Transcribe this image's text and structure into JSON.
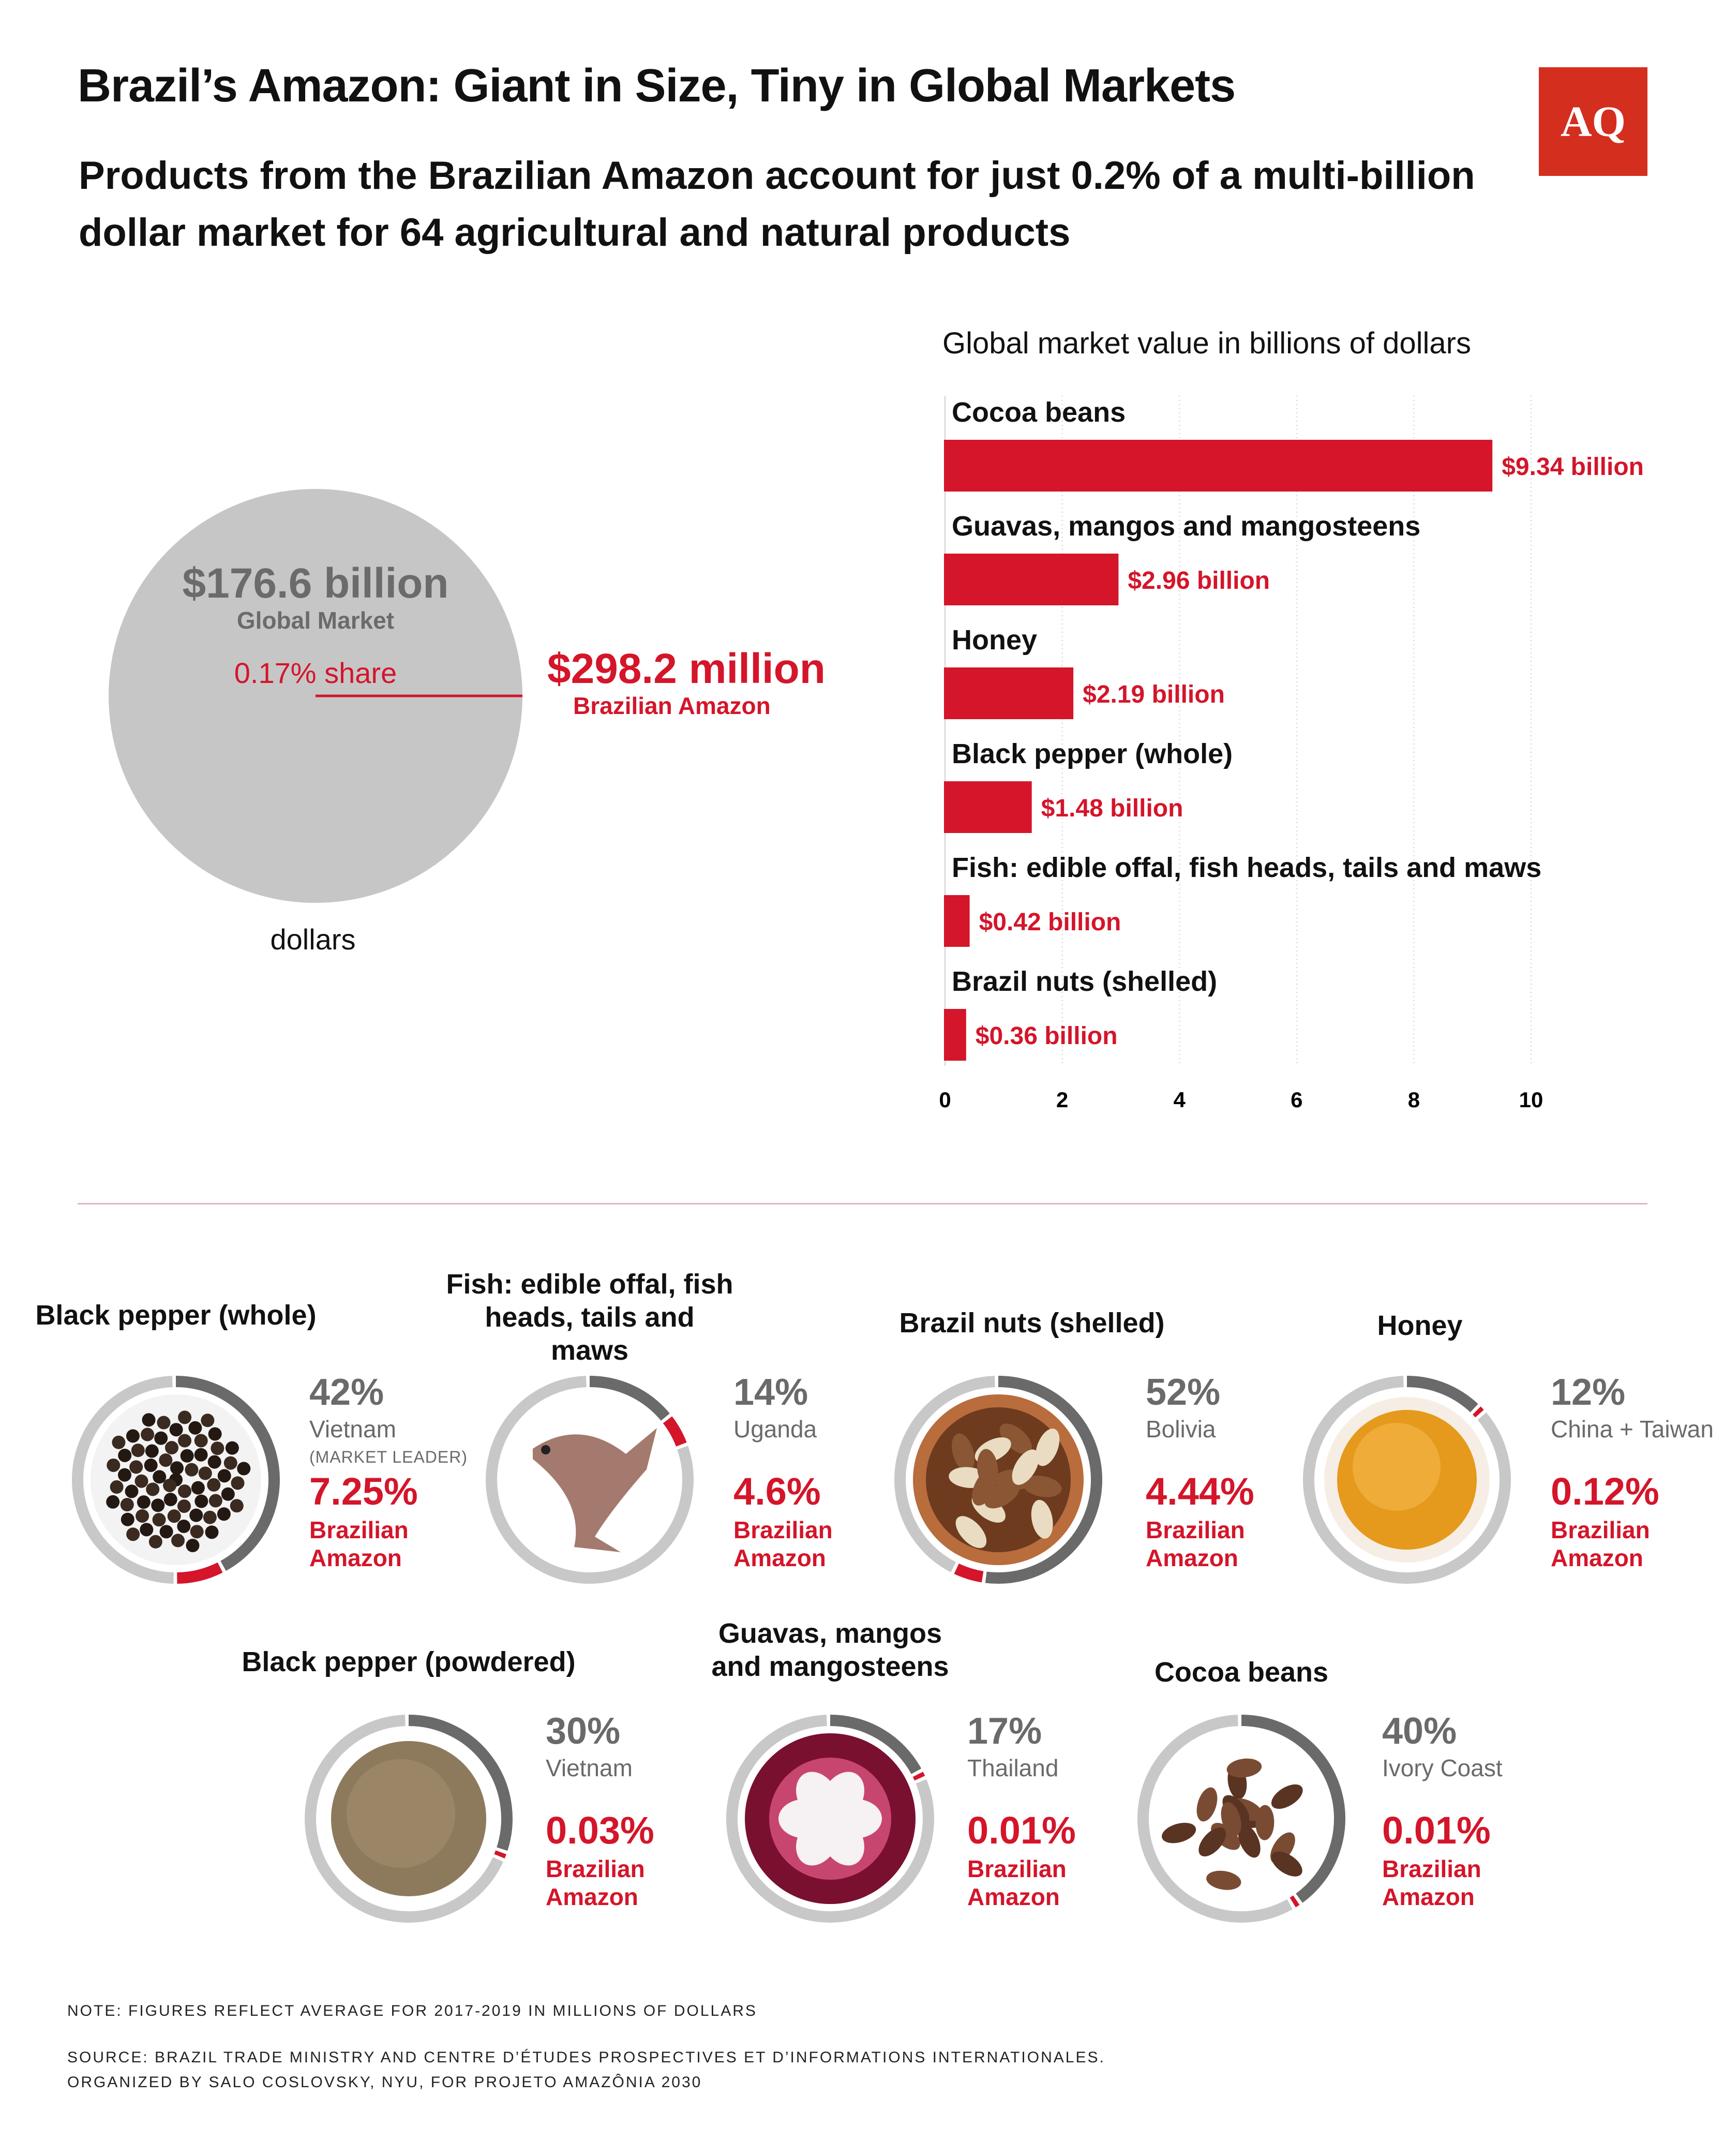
{
  "header": {
    "title": "Brazil’s Amazon: Giant in Size, Tiny in Global Markets",
    "subtitle": "Products from the Brazilian Amazon account for just 0.2% of a multi-billion dollar market for 64 agricultural and natural products",
    "logo": "AQ"
  },
  "pie": {
    "global_value": "$176.6 billion",
    "global_label": "Global Market",
    "share_label": "0.17% share",
    "amazon_value": "$298.2 million",
    "amazon_label": "Brazilian Amazon",
    "unit_label": "dollars",
    "color_global": "#c6c6c6",
    "color_accent": "#d4152a"
  },
  "chart_data": {
    "type": "bar",
    "orientation": "horizontal",
    "title": "Global market value in billions of dollars",
    "categories": [
      "Cocoa beans",
      "Guavas, mangos and mangosteens",
      "Honey",
      "Black pepper (whole)",
      "Fish: edible offal, fish heads, tails and maws",
      "Brazil nuts (shelled)"
    ],
    "values": [
      9.34,
      2.96,
      2.19,
      1.48,
      0.42,
      0.36
    ],
    "value_labels": [
      "$9.34 billion",
      "$2.96 billion",
      "$2.19 billion",
      "$1.48 billion",
      "$0.42 billion",
      "$0.36 billion"
    ],
    "xlim": [
      0,
      10
    ],
    "xticks": [
      0,
      2,
      4,
      6,
      8,
      10
    ],
    "grid": true,
    "bar_color": "#d4152a"
  },
  "products": [
    {
      "name": "Black pepper (whole)",
      "leader_pct": "42%",
      "leader_name": "Vietnam",
      "leader_note": "(MARKET LEADER)",
      "leader_share": 0.42,
      "amazon_pct": "7.25%",
      "amazon_label": "Brazilian Amazon",
      "amazon_share": 0.0725,
      "icon": "peppercorn-icon"
    },
    {
      "name": "Fish: edible offal, fish heads, tails and maws",
      "leader_pct": "14%",
      "leader_name": "Uganda",
      "leader_share": 0.14,
      "amazon_pct": "4.6%",
      "amazon_label": "Brazilian Amazon",
      "amazon_share": 0.046,
      "icon": "fish-icon"
    },
    {
      "name": "Brazil nuts (shelled)",
      "leader_pct": "52%",
      "leader_name": "Bolivia",
      "leader_share": 0.52,
      "amazon_pct": "4.44%",
      "amazon_label": "Brazilian Amazon",
      "amazon_share": 0.0444,
      "icon": "brazil-nut-icon"
    },
    {
      "name": "Honey",
      "leader_pct": "12%",
      "leader_name": "China + Taiwan",
      "leader_share": 0.12,
      "amazon_pct": "0.12%",
      "amazon_label": "Brazilian Amazon",
      "amazon_share": 0.0012,
      "icon": "honey-icon"
    },
    {
      "name": "Black pepper (powdered)",
      "leader_pct": "30%",
      "leader_name": "Vietnam",
      "leader_share": 0.3,
      "amazon_pct": "0.03%",
      "amazon_label": "Brazilian Amazon",
      "amazon_share": 0.0003,
      "icon": "pepper-powder-icon"
    },
    {
      "name": "Guavas, mangos and mangosteens",
      "leader_pct": "17%",
      "leader_name": "Thailand",
      "leader_share": 0.17,
      "amazon_pct": "0.01%",
      "amazon_label": "Brazilian Amazon",
      "amazon_share": 0.0001,
      "icon": "mangosteen-icon"
    },
    {
      "name": "Cocoa beans",
      "leader_pct": "40%",
      "leader_name": "Ivory Coast",
      "leader_share": 0.4,
      "amazon_pct": "0.01%",
      "amazon_label": "Brazilian Amazon",
      "amazon_share": 0.0001,
      "icon": "cocoa-bean-icon"
    }
  ],
  "footer": {
    "note": "NOTE: FIGURES REFLECT AVERAGE FOR 2017-2019 IN MILLIONS OF DOLLARS",
    "source": "SOURCE: BRAZIL TRADE MINISTRY AND CENTRE D’ÉTUDES PROSPECTIVES ET D’INFORMATIONS INTERNATIONALES.",
    "organized": "ORGANIZED BY SALO COSLOVSKY, NYU, FOR PROJETO AMAZÔNIA 2030"
  }
}
